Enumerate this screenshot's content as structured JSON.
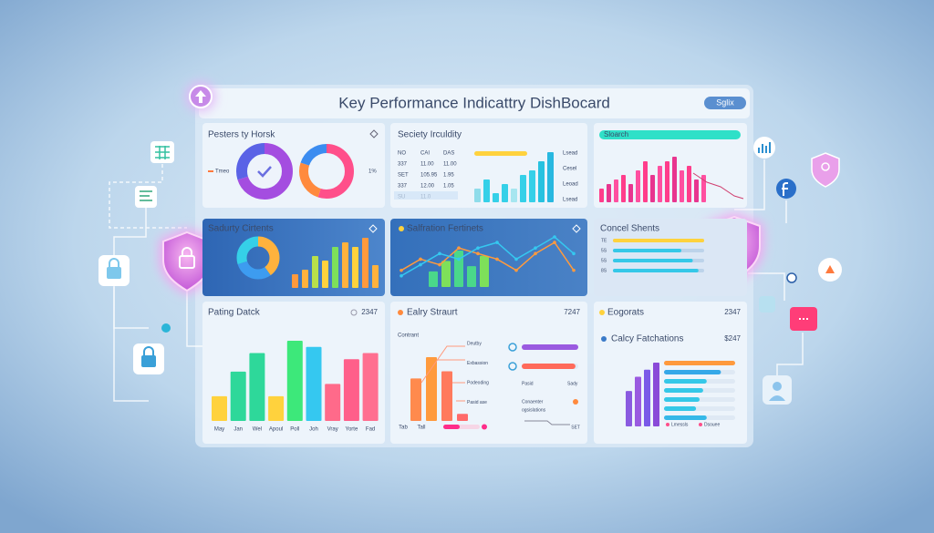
{
  "header": {
    "title": "Key Performance Indicattry DishBocard",
    "button": "Sglix"
  },
  "panels": [
    {
      "title": "Pesters ty Horsk",
      "legend": [
        "Tmeo",
        "1%"
      ],
      "ring1": [
        70,
        30
      ],
      "ring2": [
        55,
        25,
        20
      ]
    },
    {
      "title": "Seciety Irculdity",
      "table": [
        [
          "NO",
          "CAI",
          "DAS"
        ],
        [
          "337",
          "11.00",
          "11.00"
        ],
        [
          "SET",
          "105.95",
          "1.95"
        ],
        [
          "337",
          "12.00",
          "1.05"
        ],
        [
          "SU",
          "11.0"
        ]
      ],
      "bars": [
        3,
        5,
        2,
        4,
        3,
        6,
        7,
        9,
        11
      ],
      "legend": [
        "Lsead",
        "Cesel",
        "Leoad",
        "Lsead"
      ]
    },
    {
      "title": "Sloarch",
      "bars": [
        3,
        4,
        5,
        6,
        4,
        7,
        9,
        6,
        8,
        9,
        10,
        7,
        8,
        5,
        6
      ]
    },
    {
      "title": "Sadurty Cirtents",
      "ring": [
        40,
        30,
        30
      ],
      "bars": [
        3,
        4,
        7,
        6,
        9,
        10,
        9,
        11,
        5
      ]
    },
    {
      "title": "Salfration Fertinets",
      "lines": [
        [
          3,
          5,
          4,
          7,
          6,
          5,
          3,
          6,
          8,
          3
        ],
        [
          2,
          4,
          6,
          5,
          7,
          8,
          5,
          7,
          9,
          6
        ]
      ],
      "bars": [
        3,
        5,
        7,
        4,
        6
      ]
    },
    {
      "title": "Concel Shents",
      "labels": [
        "TE",
        "5S",
        "5S",
        "8S"
      ],
      "progress": [
        80,
        60,
        70,
        75
      ]
    },
    {
      "title": "Pating Datck",
      "value": "2347",
      "bars": [
        4,
        8,
        11,
        4,
        13,
        12,
        6,
        10,
        11
      ],
      "categories": [
        "May",
        "Jan",
        "Wel",
        "Apoul",
        "Poll",
        "Joh",
        "Vray",
        "Yorte",
        "Fad"
      ]
    },
    {
      "title": "Ealry Straurt",
      "value": "7247",
      "note": "Contrant",
      "bars": [
        6,
        9,
        7,
        1
      ],
      "labels": [
        "Deutby",
        "Exbassion",
        "Podeoding",
        "Pasid ase"
      ],
      "progress": [
        100,
        95
      ],
      "progress_labels": [
        "Pasid",
        "Sady"
      ],
      "caption": [
        "Conaenter",
        "ogsislations"
      ],
      "footer": [
        "Tab",
        "Tall",
        "SET"
      ],
      "pink": 45
    },
    {
      "title": "Eogorats",
      "value": "2347",
      "subtitle": "Calcy Fatchations",
      "subvalue": "$247",
      "bars": [
        5,
        7,
        8,
        9
      ],
      "progress": [
        100,
        80,
        60,
        55,
        50,
        45,
        60
      ],
      "legend": [
        "Lmessls",
        "Dsouee"
      ]
    }
  ]
}
